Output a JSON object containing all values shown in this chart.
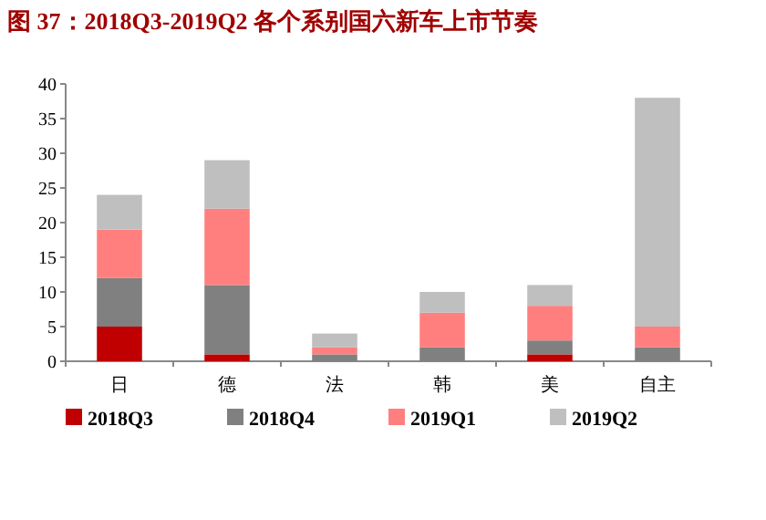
{
  "chart_data": {
    "type": "bar",
    "title": "图 37：2018Q3-2019Q2 各个系别国六新车上市节奏",
    "categories": [
      "日",
      "德",
      "法",
      "韩",
      "美",
      "自主"
    ],
    "stacked": true,
    "series": [
      {
        "name": "2018Q3",
        "color": "#c00000",
        "values": [
          5,
          1,
          0,
          0,
          1,
          0
        ]
      },
      {
        "name": "2018Q4",
        "color": "#808080",
        "values": [
          7,
          10,
          1,
          2,
          2,
          2
        ]
      },
      {
        "name": "2019Q1",
        "color": "#ff7f7f",
        "values": [
          7,
          11,
          1,
          5,
          5,
          3
        ]
      },
      {
        "name": "2019Q2",
        "color": "#bfbfbf",
        "values": [
          5,
          7,
          2,
          3,
          3,
          33
        ]
      }
    ],
    "ylim": [
      0,
      40
    ],
    "yticks": [
      0,
      5,
      10,
      15,
      20,
      25,
      30,
      35,
      40
    ],
    "legend": "bottom"
  }
}
